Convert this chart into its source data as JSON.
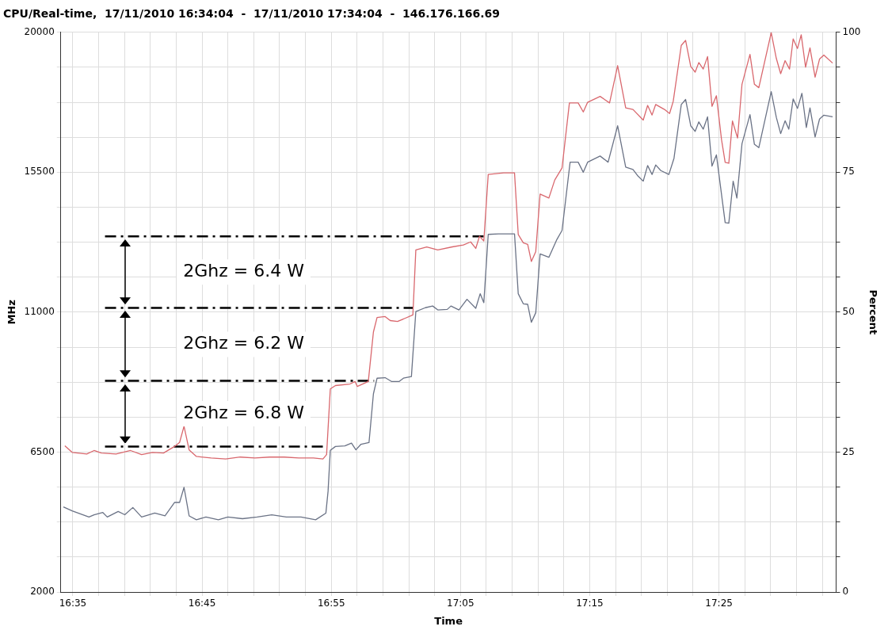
{
  "chart_data": {
    "type": "line",
    "title": "CPU/Real-time,  17/11/2010 16:34:04  -  17/11/2010 17:34:04  -  146.176.166.69",
    "xlabel": "Time",
    "ylabel": "MHz",
    "y2label": "Percent",
    "xlim": [
      16.5678,
      17.5678
    ],
    "xticks": [
      {
        "value": 16.5833,
        "label": "16:35"
      },
      {
        "value": 16.6167,
        "label": null
      },
      {
        "value": 16.65,
        "label": null
      },
      {
        "value": 16.6833,
        "label": null
      },
      {
        "value": 16.7167,
        "label": null
      },
      {
        "value": 16.75,
        "label": "16:45"
      },
      {
        "value": 16.7833,
        "label": null
      },
      {
        "value": 16.8167,
        "label": null
      },
      {
        "value": 16.85,
        "label": null
      },
      {
        "value": 16.8833,
        "label": null
      },
      {
        "value": 16.9167,
        "label": "16:55"
      },
      {
        "value": 16.95,
        "label": null
      },
      {
        "value": 16.9833,
        "label": null
      },
      {
        "value": 17.0167,
        "label": null
      },
      {
        "value": 17.05,
        "label": null
      },
      {
        "value": 17.0833,
        "label": "17:05"
      },
      {
        "value": 17.1167,
        "label": null
      },
      {
        "value": 17.15,
        "label": null
      },
      {
        "value": 17.1833,
        "label": null
      },
      {
        "value": 17.2167,
        "label": null
      },
      {
        "value": 17.25,
        "label": "17:15"
      },
      {
        "value": 17.2833,
        "label": null
      },
      {
        "value": 17.3167,
        "label": null
      },
      {
        "value": 17.35,
        "label": null
      },
      {
        "value": 17.3833,
        "label": null
      },
      {
        "value": 17.4167,
        "label": "17:25"
      },
      {
        "value": 17.45,
        "label": null
      },
      {
        "value": 17.4833,
        "label": null
      },
      {
        "value": 17.5167,
        "label": null
      },
      {
        "value": 17.55,
        "label": null
      }
    ],
    "ylim": [
      2000,
      20000
    ],
    "yticks": [
      2000,
      {
        "value": 3125,
        "label": null
      },
      {
        "value": 4250,
        "label": null
      },
      {
        "value": 5375,
        "label": null
      },
      6500,
      {
        "value": 7625,
        "label": null
      },
      {
        "value": 8750,
        "label": null
      },
      {
        "value": 9875,
        "label": null
      },
      11000,
      {
        "value": 12125,
        "label": null
      },
      {
        "value": 13250,
        "label": null
      },
      {
        "value": 14375,
        "label": null
      },
      15500,
      {
        "value": 16625,
        "label": null
      },
      {
        "value": 17750,
        "label": null
      },
      {
        "value": 18875,
        "label": null
      },
      20000
    ],
    "y2lim": [
      0,
      100
    ],
    "y2ticks": [
      0,
      {
        "value": 6.25,
        "label": null
      },
      {
        "value": 12.5,
        "label": null
      },
      {
        "value": 18.75,
        "label": null
      },
      25,
      {
        "value": 31.25,
        "label": null
      },
      {
        "value": 37.5,
        "label": null
      },
      {
        "value": 43.75,
        "label": null
      },
      50,
      {
        "value": 56.25,
        "label": null
      },
      {
        "value": 62.5,
        "label": null
      },
      {
        "value": 68.75,
        "label": null
      },
      75,
      {
        "value": 81.25,
        "label": null
      },
      {
        "value": 87.5,
        "label": null
      },
      {
        "value": 93.75,
        "label": null
      },
      100
    ],
    "grid": true,
    "legend": false,
    "series": [
      {
        "color": "#d9686e",
        "x": [
          16.573,
          16.5824,
          16.6013,
          16.6107,
          16.6201,
          16.639,
          16.6578,
          16.672,
          16.6861,
          16.7003,
          16.7144,
          16.721,
          16.7267,
          16.7333,
          16.7427,
          16.7616,
          16.7805,
          16.7993,
          16.8182,
          16.8371,
          16.8559,
          16.8748,
          16.8936,
          16.9059,
          16.9106,
          16.9154,
          16.922,
          16.9408,
          16.9474,
          16.9502,
          16.9644,
          16.971,
          16.9757,
          16.9861,
          16.9927,
          17.0021,
          17.0115,
          17.0219,
          17.0257,
          17.0398,
          17.054,
          17.0728,
          17.087,
          17.0964,
          17.103,
          17.1078,
          17.1134,
          17.1191,
          17.1389,
          17.153,
          17.1578,
          17.1643,
          17.17,
          17.1747,
          17.1804,
          17.186,
          17.1973,
          17.2049,
          17.2143,
          17.2238,
          17.2351,
          17.2417,
          17.2473,
          17.2634,
          17.2756,
          17.286,
          17.2964,
          17.3058,
          17.319,
          17.3247,
          17.3304,
          17.3351,
          17.3464,
          17.353,
          17.3577,
          17.3681,
          17.3737,
          17.3803,
          17.386,
          17.3907,
          17.3964,
          17.402,
          17.4077,
          17.4134,
          17.42,
          17.4247,
          17.4294,
          17.4341,
          17.4407,
          17.4464,
          17.4567,
          17.4624,
          17.4681,
          17.4841,
          17.4907,
          17.4963,
          17.502,
          17.5077,
          17.5124,
          17.518,
          17.5228,
          17.5284,
          17.5341,
          17.5407,
          17.5464,
          17.552,
          17.5633
        ],
        "values": [
          6700,
          6490,
          6440,
          6550,
          6470,
          6440,
          6550,
          6420,
          6490,
          6470,
          6680,
          6810,
          7330,
          6570,
          6360,
          6310,
          6280,
          6340,
          6310,
          6340,
          6340,
          6310,
          6310,
          6280,
          6420,
          8530,
          8640,
          8690,
          8770,
          8610,
          8770,
          10360,
          10830,
          10860,
          10730,
          10700,
          10800,
          10910,
          13000,
          13100,
          13000,
          13100,
          13160,
          13260,
          13050,
          13440,
          13290,
          15430,
          15480,
          15480,
          13500,
          13230,
          13180,
          12630,
          12950,
          14800,
          14670,
          15250,
          15640,
          17730,
          17730,
          17440,
          17750,
          17940,
          17730,
          18930,
          17570,
          17520,
          17180,
          17650,
          17340,
          17680,
          17520,
          17390,
          17780,
          19580,
          19740,
          18900,
          18720,
          19030,
          18820,
          19220,
          17620,
          17960,
          16550,
          15820,
          15790,
          17150,
          16600,
          18330,
          19290,
          18330,
          18220,
          19990,
          19160,
          18670,
          19090,
          18820,
          19790,
          19480,
          19920,
          18880,
          19500,
          18560,
          19140,
          19270,
          19010
        ]
      },
      {
        "color": "#6b7386",
        "axis": "y2",
        "x": [
          16.5711,
          16.5824,
          16.6041,
          16.6107,
          16.622,
          16.6277,
          16.6418,
          16.6503,
          16.6607,
          16.672,
          16.689,
          16.7022,
          16.7144,
          16.721,
          16.7267,
          16.7333,
          16.7427,
          16.755,
          16.771,
          16.7833,
          16.8021,
          16.821,
          16.8399,
          16.8587,
          16.8776,
          16.8965,
          16.9097,
          16.9125,
          16.9154,
          16.922,
          16.9342,
          16.9427,
          16.9484,
          16.955,
          16.9653,
          16.971,
          16.9757,
          16.9861,
          16.9946,
          17.004,
          17.0097,
          17.02,
          17.0257,
          17.038,
          17.0474,
          17.054,
          17.0663,
          17.071,
          17.0813,
          17.0917,
          17.103,
          17.1087,
          17.1134,
          17.1191,
          17.1323,
          17.153,
          17.1578,
          17.1643,
          17.17,
          17.1747,
          17.1804,
          17.186,
          17.1973,
          17.2077,
          17.2143,
          17.2247,
          17.2351,
          17.2417,
          17.2473,
          17.2634,
          17.2737,
          17.286,
          17.2964,
          17.3058,
          17.3124,
          17.319,
          17.3247,
          17.3304,
          17.3351,
          17.3417,
          17.3521,
          17.3587,
          17.3681,
          17.3737,
          17.3803,
          17.386,
          17.3907,
          17.3964,
          17.402,
          17.4077,
          17.4134,
          17.4247,
          17.4294,
          17.435,
          17.4398,
          17.4464,
          17.4567,
          17.4624,
          17.4681,
          17.4841,
          17.4907,
          17.4963,
          17.502,
          17.5068,
          17.5124,
          17.518,
          17.5237,
          17.5294,
          17.5341,
          17.5407,
          17.5464,
          17.552,
          17.5633
        ],
        "values": [
          15.2,
          14.5,
          13.4,
          13.8,
          14.2,
          13.4,
          14.4,
          13.8,
          15.1,
          13.4,
          14.1,
          13.6,
          16.0,
          16.0,
          18.7,
          13.6,
          12.9,
          13.4,
          12.9,
          13.4,
          13.1,
          13.4,
          13.8,
          13.4,
          13.4,
          12.9,
          14.1,
          18.0,
          25.3,
          26.0,
          26.1,
          26.6,
          25.4,
          26.4,
          26.7,
          35.4,
          38.2,
          38.3,
          37.6,
          37.6,
          38.2,
          38.5,
          50.1,
          50.8,
          51.1,
          50.4,
          50.5,
          51.1,
          50.4,
          52.3,
          50.7,
          53.3,
          51.7,
          63.9,
          64.0,
          64.0,
          53.3,
          51.5,
          51.4,
          48.2,
          49.9,
          60.4,
          59.8,
          63.0,
          64.6,
          76.8,
          76.8,
          75.0,
          76.8,
          77.9,
          76.8,
          83.3,
          75.9,
          75.5,
          74.3,
          73.4,
          76.2,
          74.6,
          76.3,
          75.3,
          74.6,
          77.5,
          87.1,
          88.0,
          83.3,
          82.3,
          84.0,
          82.7,
          84.9,
          76.1,
          78.1,
          66.0,
          65.9,
          73.4,
          70.4,
          80.1,
          85.3,
          80.0,
          79.4,
          89.4,
          84.8,
          81.9,
          84.2,
          82.7,
          88.1,
          86.4,
          89.1,
          83.0,
          86.5,
          81.3,
          84.5,
          85.2,
          84.9
        ]
      },
      {
        "color": "#000000",
        "line_style": "dashed",
        "x": [
          16.6248,
          17.1163
        ],
        "values": [
          13440,
          13440
        ]
      },
      {
        "color": "#000000",
        "line_style": "dashed",
        "x": [
          16.6248,
          17.0219
        ],
        "values": [
          11140,
          11140
        ]
      },
      {
        "color": "#000000",
        "line_style": "dashed",
        "x": [
          16.6248,
          16.9719
        ],
        "values": [
          8790,
          8790
        ]
      },
      {
        "color": "#000000",
        "line_style": "dashed",
        "x": [
          16.6248,
          16.9106
        ],
        "values": [
          6680,
          6680
        ]
      }
    ],
    "annotations": [
      "2Ghz = 6.4 W",
      "2Ghz = 6.2 W",
      "2Ghz = 6.8 W"
    ]
  }
}
